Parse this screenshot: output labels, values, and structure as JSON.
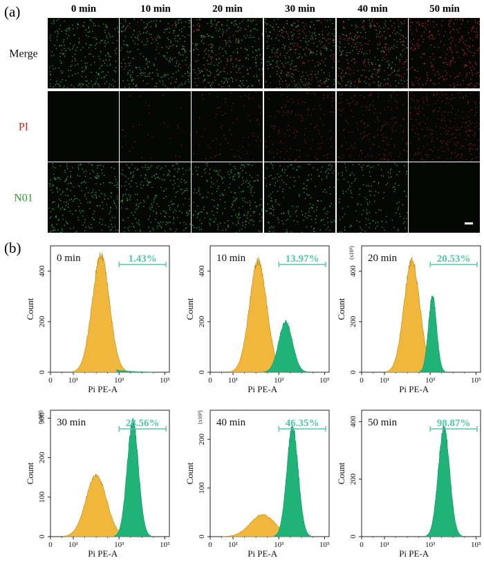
{
  "panel_a": {
    "label": "(a)",
    "time_headers": [
      "0 min",
      "10 min",
      "20 min",
      "30 min",
      "40 min",
      "50 min"
    ],
    "rows": [
      {
        "label": "Merge",
        "color": "#111111"
      },
      {
        "label": "PI",
        "color": "#cc1f1f"
      },
      {
        "label": "N01",
        "color": "#2a9d2a"
      }
    ],
    "green_density": [
      1.0,
      1.0,
      0.95,
      0.8,
      0.6,
      0.0
    ],
    "red_density": [
      0.0,
      0.12,
      0.3,
      0.5,
      0.7,
      1.0
    ],
    "dot_colors": {
      "green": "#39d04a",
      "red": "#ff2a2a"
    }
  },
  "panel_b": {
    "label": "(b)",
    "xlabel": "Pi PE-A",
    "ylabel": "Count",
    "colors": {
      "negative": "#f0b73c",
      "positive": "#20b377",
      "gate": "#4fc9a6",
      "outline": "#b58a1e"
    }
  },
  "chart_data": [
    {
      "type": "area",
      "title": "0 min",
      "gate_pct": "1.43%",
      "xlabel": "Pi PE-A",
      "ylabel": "Count",
      "y_multiplier": "",
      "xticks": [
        "0",
        "10¹",
        "10³",
        "10⁵"
      ],
      "yticks": [
        0,
        200,
        400
      ],
      "ylim": [
        0,
        500
      ],
      "peaks": [
        {
          "pos": 2.2,
          "height": 460,
          "width": 0.38,
          "color": "negative"
        }
      ],
      "positive_fraction": 0.0143
    },
    {
      "type": "area",
      "title": "10 min",
      "gate_pct": "13.97%",
      "xlabel": "Pi PE-A",
      "ylabel": "Count",
      "y_multiplier": "",
      "xticks": [
        "0",
        "10¹",
        "10³",
        "10⁵"
      ],
      "yticks": [
        0,
        200,
        400
      ],
      "ylim": [
        0,
        500
      ],
      "peaks": [
        {
          "pos": 2.1,
          "height": 440,
          "width": 0.38,
          "color": "negative"
        },
        {
          "pos": 3.3,
          "height": 200,
          "width": 0.3,
          "color": "positive"
        }
      ],
      "positive_fraction": 0.1397
    },
    {
      "type": "area",
      "title": "20 min",
      "gate_pct": "20.53%",
      "xlabel": "Pi PE-A",
      "ylabel": "Count",
      "y_multiplier": "(x10³)",
      "xticks": [
        "0",
        "10¹",
        "10³",
        "10⁵"
      ],
      "yticks": [
        0,
        200,
        400
      ],
      "ylim": [
        0,
        500
      ],
      "peaks": [
        {
          "pos": 2.2,
          "height": 440,
          "width": 0.35,
          "color": "negative"
        },
        {
          "pos": 3.1,
          "height": 300,
          "width": 0.18,
          "color": "positive"
        }
      ],
      "positive_fraction": 0.2053
    },
    {
      "type": "area",
      "title": "30 min",
      "gate_pct": "28.56%",
      "xlabel": "Pi PE-A",
      "ylabel": "Count",
      "y_multiplier": "(x10³)",
      "xticks": [
        "0",
        "10¹",
        "10³",
        "10⁵"
      ],
      "yticks": [
        0,
        100,
        200,
        300
      ],
      "ylim": [
        0,
        320
      ],
      "peaks": [
        {
          "pos": 2.0,
          "height": 155,
          "width": 0.45,
          "color": "negative"
        },
        {
          "pos": 3.6,
          "height": 290,
          "width": 0.25,
          "color": "positive"
        }
      ],
      "positive_fraction": 0.2856
    },
    {
      "type": "area",
      "title": "40 min",
      "gate_pct": "46.35%",
      "xlabel": "Pi PE-A",
      "ylabel": "Count",
      "y_multiplier": "(x10³)",
      "xticks": [
        "0",
        "10¹",
        "10³",
        "10⁵"
      ],
      "yticks": [
        0,
        100,
        200
      ],
      "ylim": [
        0,
        260
      ],
      "peaks": [
        {
          "pos": 2.3,
          "height": 45,
          "width": 0.55,
          "color": "negative"
        },
        {
          "pos": 3.6,
          "height": 225,
          "width": 0.25,
          "color": "positive"
        }
      ],
      "positive_fraction": 0.4635
    },
    {
      "type": "area",
      "title": "50 min",
      "gate_pct": "98.87%",
      "xlabel": "Pi PE-A",
      "ylabel": "Count",
      "y_multiplier": "",
      "xticks": [
        "0",
        "10¹",
        "10³",
        "10⁵"
      ],
      "yticks": [
        0,
        200,
        400
      ],
      "ylim": [
        0,
        440
      ],
      "peaks": [
        {
          "pos": 3.6,
          "height": 380,
          "width": 0.25,
          "color": "positive"
        }
      ],
      "positive_fraction": 0.9887
    }
  ]
}
